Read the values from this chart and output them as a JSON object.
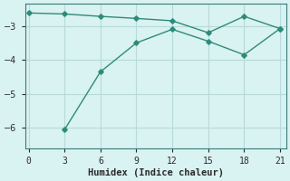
{
  "xlabel": "Humidex (Indice chaleur)",
  "ylabel": "",
  "bg_color": "#d9f2f2",
  "grid_color": "#b8dada",
  "line_color": "#2e8b7a",
  "line1_x": [
    0,
    3,
    6,
    9,
    12,
    15,
    18,
    21
  ],
  "line1_y": [
    -2.62,
    -2.65,
    -2.72,
    -2.78,
    -2.85,
    -3.2,
    -2.72,
    -3.08
  ],
  "line2_x": [
    3,
    6,
    9,
    12,
    15,
    18,
    21
  ],
  "line2_y": [
    -6.05,
    -4.35,
    -3.5,
    -3.1,
    -3.45,
    -3.85,
    -3.08
  ],
  "xlim": [
    -0.3,
    21.5
  ],
  "ylim": [
    -6.6,
    -2.35
  ],
  "xticks": [
    0,
    3,
    6,
    9,
    12,
    15,
    18,
    21
  ],
  "yticks": [
    -6,
    -5,
    -4,
    -3
  ],
  "marker": "D",
  "markersize": 2.8,
  "linewidth": 1.0
}
